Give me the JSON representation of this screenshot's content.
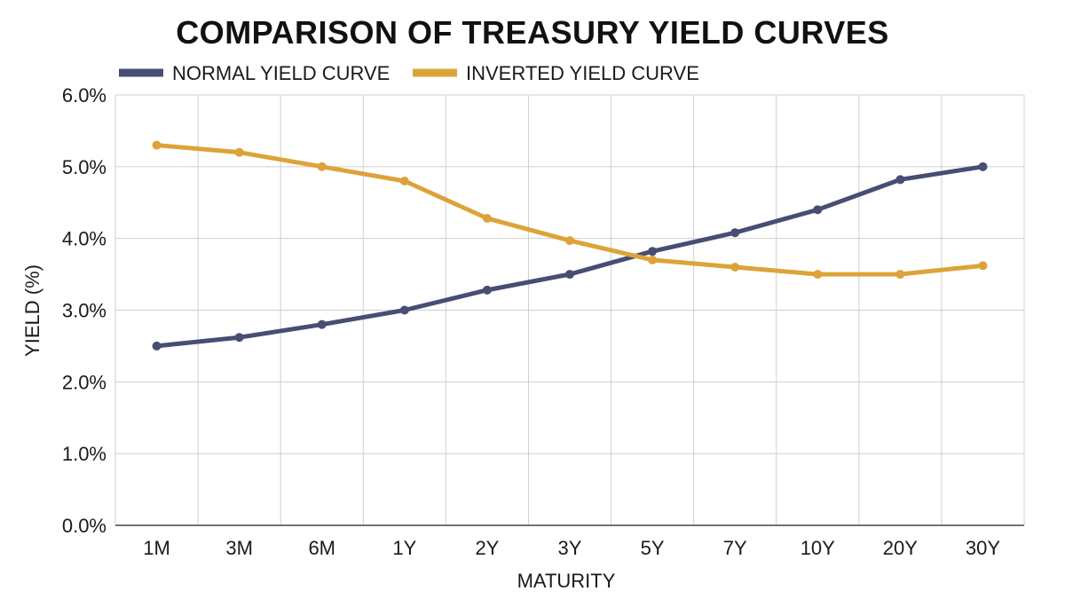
{
  "chart_data": {
    "type": "line",
    "title": "COMPARISON OF TREASURY YIELD CURVES",
    "xlabel": "MATURITY",
    "ylabel": "YIELD (%)",
    "categories": [
      "1M",
      "3M",
      "6M",
      "1Y",
      "2Y",
      "3Y",
      "5Y",
      "7Y",
      "10Y",
      "20Y",
      "30Y"
    ],
    "y_ticks": [
      "0.0%",
      "1.0%",
      "2.0%",
      "3.0%",
      "4.0%",
      "5.0%",
      "6.0%"
    ],
    "ylim": [
      0,
      6
    ],
    "grid": true,
    "legend_position": "top-left",
    "series": [
      {
        "name": "NORMAL YIELD CURVE",
        "color": "#474d73",
        "values": [
          2.5,
          2.62,
          2.8,
          3.0,
          3.28,
          3.5,
          3.82,
          4.08,
          4.4,
          4.82,
          5.0
        ]
      },
      {
        "name": "INVERTED YIELD CURVE",
        "color": "#dda33a",
        "values": [
          5.3,
          5.2,
          5.0,
          4.8,
          4.28,
          3.97,
          3.7,
          3.6,
          3.5,
          3.5,
          3.62
        ]
      }
    ]
  }
}
